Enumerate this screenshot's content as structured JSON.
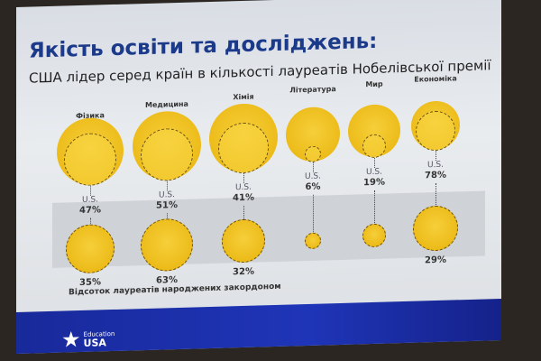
{
  "title": "Якість освіти та досліджень:",
  "subtitle": "США лідер серед країн в кількості лауреатів Нобелівської премії",
  "us_label": "U.S.",
  "categories": [
    {
      "name": "Фізика",
      "us_pct": "47%",
      "foreign_pct": "35%"
    },
    {
      "name": "Медицина",
      "us_pct": "51%",
      "foreign_pct": "63%"
    },
    {
      "name": "Хімія",
      "us_pct": "41%",
      "foreign_pct": "32%"
    },
    {
      "name": "Література",
      "us_pct": "6%",
      "foreign_pct": ""
    },
    {
      "name": "Мир",
      "us_pct": "19%",
      "foreign_pct": ""
    },
    {
      "name": "Економіка",
      "us_pct": "78%",
      "foreign_pct": "29%"
    }
  ],
  "note": "Відсоток лауреатів народжених закордоном",
  "logo": {
    "line1": "Education",
    "line2": "USA"
  },
  "colors": {
    "circle": "#f0c020",
    "footer": "#1f35b8",
    "title": "#1c3a8a"
  }
}
